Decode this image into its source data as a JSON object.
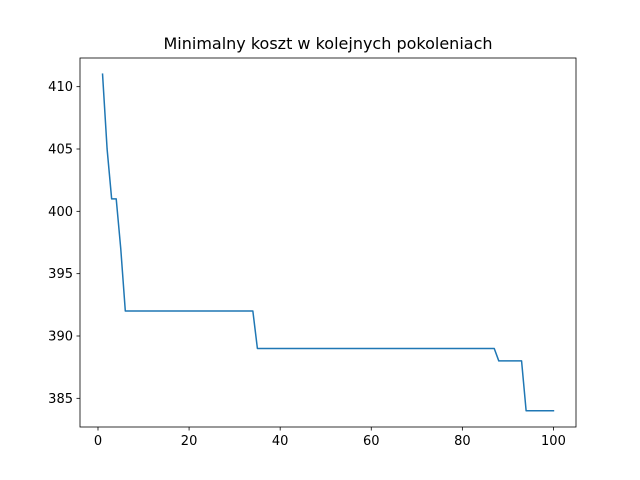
{
  "chart_data": {
    "type": "line",
    "title": "Minimalny koszt w kolejnych pokoleniach",
    "xlabel": "",
    "ylabel": "",
    "xlim": [
      -3.95,
      104.95
    ],
    "ylim": [
      382.7,
      412.3
    ],
    "x_ticks": [
      0,
      20,
      40,
      60,
      80,
      100
    ],
    "x_tick_labels": [
      "0",
      "20",
      "40",
      "60",
      "80",
      "100"
    ],
    "y_ticks": [
      385,
      390,
      395,
      400,
      405,
      410
    ],
    "y_tick_labels": [
      "385",
      "390",
      "395",
      "400",
      "405",
      "410"
    ],
    "grid": false,
    "legend": "none",
    "series": [
      {
        "color": "#1f77b4",
        "x": [
          1,
          2,
          3,
          4,
          5,
          6,
          34,
          35,
          87,
          88,
          93,
          94,
          100
        ],
        "y": [
          411,
          405,
          401,
          401,
          397,
          392,
          392,
          389,
          389,
          388,
          388,
          384,
          384
        ]
      }
    ]
  }
}
